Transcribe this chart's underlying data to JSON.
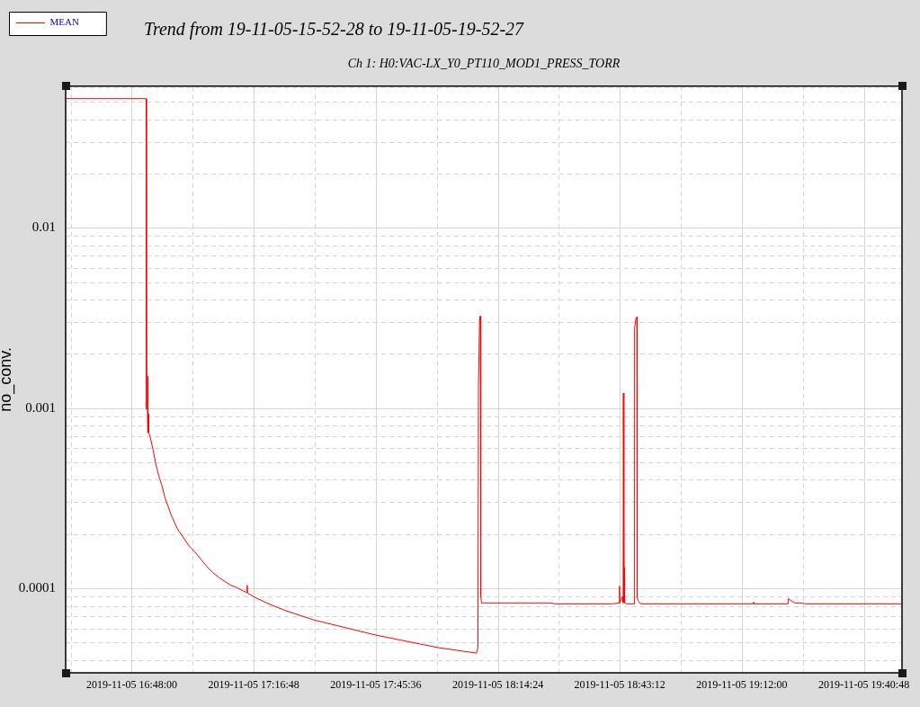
{
  "chart_data": {
    "type": "line",
    "title": "Trend from 19-11-05-15-52-28 to 19-11-05-19-52-27",
    "subtitle": "Ch 1: H0:VAC-LX_Y0_PT110_MOD1_PRESS_TORR",
    "ylabel": "no_conv.",
    "x": [
      "2019-11-05T16:32:31",
      "2019-11-05T16:51:25",
      "2019-11-05T16:51:29",
      "2019-11-05T16:51:43",
      "2019-11-05T16:51:47",
      "2019-11-05T16:51:50",
      "2019-11-05T16:51:58",
      "2019-11-05T16:52:01",
      "2019-11-05T16:52:20",
      "2019-11-05T16:53:02",
      "2019-11-05T16:53:44",
      "2019-11-05T16:54:27",
      "2019-11-05T16:55:09",
      "2019-11-05T16:55:51",
      "2019-11-05T16:57:16",
      "2019-11-05T16:58:41",
      "2019-11-05T17:00:05",
      "2019-11-05T17:01:31",
      "2019-11-05T17:02:56",
      "2019-11-05T17:04:20",
      "2019-11-05T17:05:45",
      "2019-11-05T17:07:10",
      "2019-11-05T17:08:35",
      "2019-11-05T17:10:00",
      "2019-11-05T17:11:25",
      "2019-11-05T17:12:49",
      "2019-11-05T17:14:14",
      "2019-11-05T17:15:07",
      "2019-11-05T17:15:14",
      "2019-11-05T17:15:22",
      "2019-11-05T17:17:04",
      "2019-11-05T17:20:36",
      "2019-11-05T17:24:08",
      "2019-11-05T17:27:40",
      "2019-11-05T17:31:12",
      "2019-11-05T17:45:40",
      "2019-11-05T18:00:07",
      "2019-11-05T18:09:22",
      "2019-11-05T18:09:43",
      "2019-11-05T18:09:50",
      "2019-11-05T18:10:05",
      "2019-11-05T18:10:16",
      "2019-11-05T18:10:23",
      "2019-11-05T18:10:34",
      "2019-11-05T18:26:56",
      "2019-11-05T18:27:50",
      "2019-11-05T18:41:24",
      "2019-11-05T18:43:05",
      "2019-11-05T18:43:08",
      "2019-11-05T18:43:12",
      "2019-11-05T18:43:48",
      "2019-11-05T18:43:59",
      "2019-11-05T18:44:02",
      "2019-11-05T18:44:10",
      "2019-11-05T18:44:13",
      "2019-11-05T18:44:20",
      "2019-11-05T18:44:46",
      "2019-11-05T18:46:34",
      "2019-11-05T18:46:41",
      "2019-11-05T18:46:59",
      "2019-11-05T18:47:13",
      "2019-11-05T18:47:17",
      "2019-11-05T18:47:35",
      "2019-11-05T18:48:07",
      "2019-11-05T19:14:42",
      "2019-11-05T19:14:46",
      "2019-11-05T19:14:53",
      "2019-11-05T19:22:52",
      "2019-11-05T19:22:55",
      "2019-11-05T19:23:46",
      "2019-11-05T19:24:29",
      "2019-11-05T19:26:06",
      "2019-11-05T19:27:00",
      "2019-11-05T19:49:44"
    ],
    "series": [
      {
        "name": "MEAN",
        "color": "#ff0000",
        "values": [
          0.052,
          0.052,
          0.00099,
          0.00099,
          0.0015,
          0.00073,
          0.00093,
          0.00073,
          0.000695,
          0.000586,
          0.000483,
          0.000415,
          0.00037,
          0.000318,
          0.000257,
          0.000216,
          0.000193,
          0.000172,
          0.000159,
          0.000145,
          0.000132,
          0.000122,
          0.000115,
          0.000109,
          0.000104,
          0.000101,
          9.69e-05,
          9.5e-05,
          0.000104,
          9.4e-05,
          8.91e-05,
          8.15e-05,
          7.55e-05,
          7.08e-05,
          6.66e-05,
          5.5e-05,
          4.7e-05,
          4.37e-05,
          4.7e-05,
          0.00132,
          0.00306,
          0.00324,
          9.04e-05,
          8.3e-05,
          8.3e-05,
          8.2e-05,
          8.2e-05,
          8.3e-05,
          0.000103,
          8.3e-05,
          9e-05,
          8.3e-05,
          0.00121,
          8.5e-05,
          0.00013,
          8.3e-05,
          8.2e-05,
          8.2e-05,
          0.00276,
          0.00312,
          0.0032,
          8.9e-05,
          8.5e-05,
          8.2e-05,
          8.2e-05,
          8.4e-05,
          8.2e-05,
          8.2e-05,
          8.77e-05,
          8.5e-05,
          8.3e-05,
          8.3e-05,
          8.2e-05,
          8.2e-05
        ]
      }
    ],
    "xlim": [
      "2019-11-05T16:32:24",
      "2019-11-05T19:49:48"
    ],
    "xticks": [
      {
        "value": "2019-11-05T16:33:36",
        "label": null
      },
      {
        "value": "2019-11-05T16:48:00",
        "label": "2019-11-05 16:48:00"
      },
      {
        "value": "2019-11-05T17:02:24",
        "label": null
      },
      {
        "value": "2019-11-05T17:16:48",
        "label": "2019-11-05 17:16:48"
      },
      {
        "value": "2019-11-05T17:31:12",
        "label": null
      },
      {
        "value": "2019-11-05T17:45:36",
        "label": "2019-11-05 17:45:36"
      },
      {
        "value": "2019-11-05T18:00:00",
        "label": null
      },
      {
        "value": "2019-11-05T18:14:24",
        "label": "2019-11-05 18:14:24"
      },
      {
        "value": "2019-11-05T18:28:48",
        "label": null
      },
      {
        "value": "2019-11-05T18:43:12",
        "label": "2019-11-05 18:43:12"
      },
      {
        "value": "2019-11-05T18:57:36",
        "label": null
      },
      {
        "value": "2019-11-05T19:12:00",
        "label": "2019-11-05 19:12:00"
      },
      {
        "value": "2019-11-05T19:26:24",
        "label": null
      },
      {
        "value": "2019-11-05T19:40:48",
        "label": "2019-11-05 19:40:48"
      }
    ],
    "ylim": [
      3.4e-05,
      0.061
    ],
    "yticks": [
      {
        "value": 4e-05,
        "label": null
      },
      {
        "value": 5e-05,
        "label": null
      },
      {
        "value": 6e-05,
        "label": null
      },
      {
        "value": 7e-05,
        "label": null
      },
      {
        "value": 8e-05,
        "label": null
      },
      {
        "value": 9e-05,
        "label": null
      },
      0.0001,
      {
        "value": 0.0002,
        "label": null
      },
      {
        "value": 0.0003,
        "label": null
      },
      {
        "value": 0.0004,
        "label": null
      },
      {
        "value": 0.0005,
        "label": null
      },
      {
        "value": 0.0006,
        "label": null
      },
      {
        "value": 0.0007,
        "label": null
      },
      {
        "value": 0.0008,
        "label": null
      },
      {
        "value": 0.0009,
        "label": null
      },
      0.001,
      {
        "value": 0.002,
        "label": null
      },
      {
        "value": 0.003,
        "label": null
      },
      {
        "value": 0.004,
        "label": null
      },
      {
        "value": 0.005,
        "label": null
      },
      {
        "value": 0.006,
        "label": null
      },
      {
        "value": 0.007,
        "label": null
      },
      {
        "value": 0.008,
        "label": null
      },
      {
        "value": 0.009,
        "label": null
      },
      0.01,
      {
        "value": 0.02,
        "label": null
      },
      {
        "value": 0.03,
        "label": null
      },
      {
        "value": 0.04,
        "label": null
      },
      {
        "value": 0.05,
        "label": null
      },
      {
        "value": 0.06,
        "label": null
      }
    ],
    "log": true,
    "grid": true,
    "legend": "top left"
  }
}
